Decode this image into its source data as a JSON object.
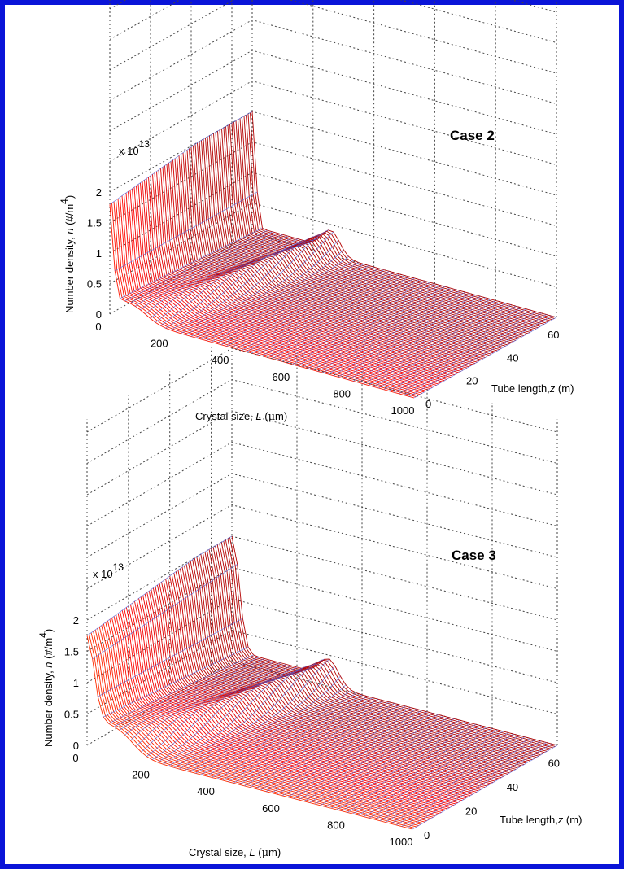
{
  "chart_data": [
    {
      "type": "surface",
      "title": "Case 2",
      "xlabel": "Crystal size, L (µm)",
      "xlabel_parts": [
        "Crystal size,  ",
        "L",
        " (",
        "μ",
        "m)"
      ],
      "ylabel": "Tube length, z (m)",
      "ylabel_parts": [
        "Tube length,",
        "z",
        " (m)"
      ],
      "zlabel": "Number density, n (#/m4)",
      "zlabel_parts": [
        "Number density, ",
        "n",
        " (#/m",
        "4",
        ")"
      ],
      "z_multiplier": "x 10",
      "z_multiplier_exp": "13",
      "xlim": [
        0,
        1000
      ],
      "ylim": [
        0,
        70
      ],
      "zlim": [
        0,
        2
      ],
      "x_ticks": [
        "0",
        "200",
        "400",
        "600",
        "800",
        "1000"
      ],
      "y_ticks": [
        "0",
        "20",
        "40",
        "60"
      ],
      "z_ticks": [
        "0",
        "0.5",
        "1",
        "1.5",
        "2"
      ],
      "grid": true,
      "colormap": "jet",
      "surface": {
        "nucleation_peak_start": 1.5,
        "nucleation_peak_end": 2.0,
        "nucleation_peak_width_um": 15,
        "growth_front_start_um": 120,
        "growth_front_end_um": 260,
        "shoulder_height": 0.3
      }
    },
    {
      "type": "surface",
      "title": "Case 3",
      "xlabel": "Crystal size, L (µm)",
      "xlabel_parts": [
        "Crystal size,  ",
        "L",
        " (",
        "μ",
        "m)"
      ],
      "ylabel": "Tube length, z (m)",
      "ylabel_parts": [
        "Tube length,",
        "z",
        " (m)"
      ],
      "zlabel": "Number density, n (#/m4)",
      "zlabel_parts": [
        "Number density, ",
        "n",
        " (#/m",
        "4",
        ")"
      ],
      "z_multiplier": "x 10",
      "z_multiplier_exp": "13",
      "xlim": [
        0,
        1000
      ],
      "ylim": [
        0,
        70
      ],
      "zlim": [
        0,
        2
      ],
      "x_ticks": [
        "0",
        "200",
        "400",
        "600",
        "800",
        "1000"
      ],
      "y_ticks": [
        "0",
        "20",
        "40",
        "60"
      ],
      "z_ticks": [
        "0",
        "0.5",
        "1",
        "1.5",
        "2"
      ],
      "grid": true,
      "colormap": "jet",
      "surface": {
        "nucleation_peak_start": 1.3,
        "nucleation_peak_end": 1.9,
        "nucleation_peak_width_um": 30,
        "growth_front_start_um": 140,
        "growth_front_end_um": 300,
        "shoulder_height": 0.45
      }
    }
  ]
}
